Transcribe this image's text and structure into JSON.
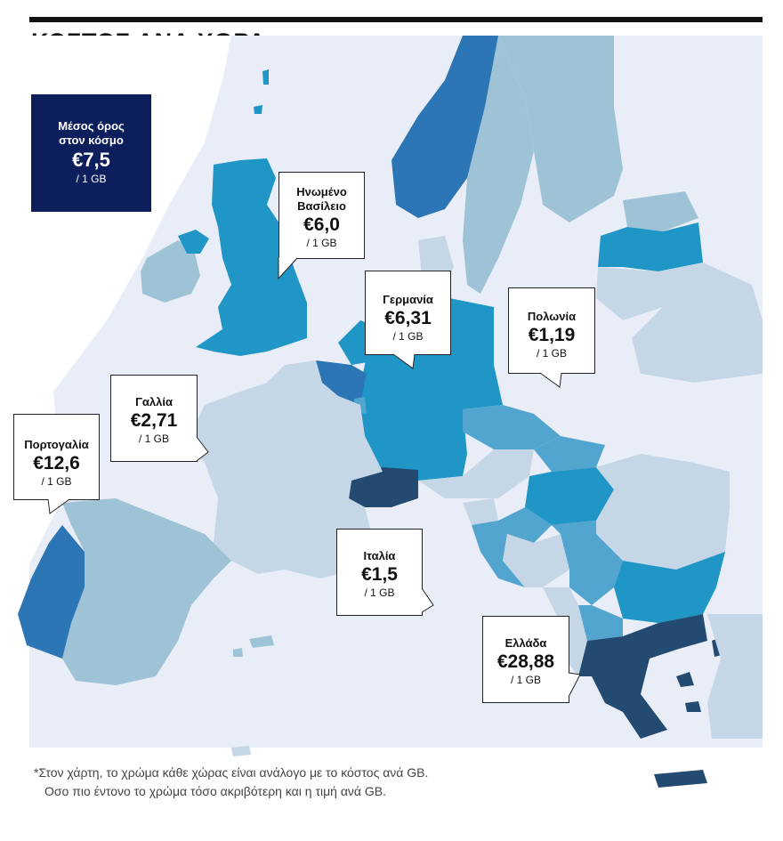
{
  "title": "ΚΟΣΤΟΣ ΑΝΑ ΧΩΡΑ",
  "world_average": {
    "label_line1": "Μέσος όρος",
    "label_line2": "στον κόσμο",
    "price": "€7,5",
    "unit": "/ 1 GB"
  },
  "callouts": [
    {
      "id": "uk",
      "name_line1": "Ηνωμένο",
      "name_line2": "Βασίλειο",
      "price": "€6,0",
      "unit": "/ 1 GB"
    },
    {
      "id": "de",
      "name_line1": "Γερμανία",
      "name_line2": "",
      "price": "€6,31",
      "unit": "/ 1 GB"
    },
    {
      "id": "pl",
      "name_line1": "Πολωνία",
      "name_line2": "",
      "price": "€1,19",
      "unit": "/ 1 GB"
    },
    {
      "id": "fr",
      "name_line1": "Γαλλία",
      "name_line2": "",
      "price": "€2,71",
      "unit": "/ 1 GB"
    },
    {
      "id": "pt",
      "name_line1": "Πορτογαλία",
      "name_line2": "",
      "price": "€12,6",
      "unit": "/ 1 GB"
    },
    {
      "id": "it",
      "name_line1": "Ιταλία",
      "name_line2": "",
      "price": "€1,5",
      "unit": "/ 1 GB"
    },
    {
      "id": "gr",
      "name_line1": "Ελλάδα",
      "name_line2": "",
      "price": "€28,88",
      "unit": "/ 1 GB"
    }
  ],
  "footnote": {
    "line1": "*Στον χάρτη, το χρώμα κάθε χώρας είναι ανάλογο με το κόστος ανά GB.",
    "line2": "Οσο πιο έντονο το χρώμα τόσο ακριβότερη και η τιμή ανά GB."
  },
  "colors": {
    "sea": "#e9edf7",
    "very_light": "#c5d6e6",
    "light": "#9ec3d6",
    "medium_light": "#52a5cf",
    "medium": "#1f96c6",
    "strong": "#2d76b5",
    "dark": "#234a70",
    "avg_box": "#0d1e5c"
  }
}
